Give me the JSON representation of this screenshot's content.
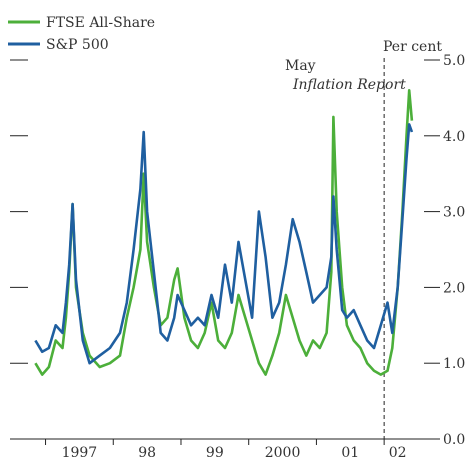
{
  "chart_data": {
    "type": "line",
    "title": "",
    "xlabel": "",
    "ylabel": "",
    "y_unit_label": "Per cent",
    "ylim": [
      0,
      5
    ],
    "yticks": [
      "0.0",
      "1.0",
      "2.0",
      "3.0",
      "4.0",
      "5.0"
    ],
    "xlim": [
      1996.8,
      2002.5
    ],
    "xtick_labels": [
      {
        "label": "1997",
        "x": 1997.5
      },
      {
        "label": "98",
        "x": 1998.5
      },
      {
        "label": "99",
        "x": 1999.5
      },
      {
        "label": "2000",
        "x": 2000.5
      },
      {
        "label": "01",
        "x": 2001.5
      },
      {
        "label": "02",
        "x": 2002.2
      }
    ],
    "year_boundaries": [
      1997,
      1998,
      1999,
      2000,
      2001,
      2002
    ],
    "legend_position": "top-left",
    "annotation": {
      "x": 2002.0,
      "line1": "May",
      "line2": "Inflation Report"
    },
    "series": [
      {
        "name": "FTSE All-Share",
        "color": "#4caf3a",
        "points": [
          [
            1996.85,
            1.0
          ],
          [
            1996.95,
            0.85
          ],
          [
            1997.05,
            0.95
          ],
          [
            1997.15,
            1.3
          ],
          [
            1997.25,
            1.2
          ],
          [
            1997.3,
            1.6
          ],
          [
            1997.35,
            2.2
          ],
          [
            1997.4,
            3.1
          ],
          [
            1997.45,
            2.0
          ],
          [
            1997.55,
            1.4
          ],
          [
            1997.65,
            1.1
          ],
          [
            1997.8,
            0.95
          ],
          [
            1997.95,
            1.0
          ],
          [
            1998.1,
            1.1
          ],
          [
            1998.2,
            1.6
          ],
          [
            1998.3,
            2.0
          ],
          [
            1998.4,
            2.5
          ],
          [
            1998.45,
            3.5
          ],
          [
            1998.5,
            2.6
          ],
          [
            1998.6,
            2.0
          ],
          [
            1998.7,
            1.5
          ],
          [
            1998.8,
            1.6
          ],
          [
            1998.9,
            2.1
          ],
          [
            1998.95,
            2.25
          ],
          [
            1999.05,
            1.6
          ],
          [
            1999.15,
            1.3
          ],
          [
            1999.25,
            1.2
          ],
          [
            1999.35,
            1.4
          ],
          [
            1999.45,
            1.8
          ],
          [
            1999.55,
            1.3
          ],
          [
            1999.65,
            1.2
          ],
          [
            1999.75,
            1.4
          ],
          [
            1999.85,
            1.9
          ],
          [
            1999.95,
            1.6
          ],
          [
            2000.05,
            1.3
          ],
          [
            2000.15,
            1.0
          ],
          [
            2000.25,
            0.85
          ],
          [
            2000.35,
            1.1
          ],
          [
            2000.45,
            1.4
          ],
          [
            2000.55,
            1.9
          ],
          [
            2000.65,
            1.6
          ],
          [
            2000.75,
            1.3
          ],
          [
            2000.85,
            1.1
          ],
          [
            2000.95,
            1.3
          ],
          [
            2001.05,
            1.2
          ],
          [
            2001.15,
            1.4
          ],
          [
            2001.22,
            2.2
          ],
          [
            2001.25,
            4.25
          ],
          [
            2001.3,
            3.0
          ],
          [
            2001.38,
            2.0
          ],
          [
            2001.45,
            1.5
          ],
          [
            2001.55,
            1.3
          ],
          [
            2001.65,
            1.2
          ],
          [
            2001.75,
            1.0
          ],
          [
            2001.85,
            0.9
          ],
          [
            2001.95,
            0.85
          ],
          [
            2002.05,
            0.9
          ],
          [
            2002.12,
            1.2
          ],
          [
            2002.2,
            2.0
          ],
          [
            2002.27,
            3.0
          ],
          [
            2002.33,
            4.0
          ],
          [
            2002.37,
            4.6
          ],
          [
            2002.41,
            4.2
          ]
        ]
      },
      {
        "name": "S&P 500",
        "color": "#1f5fa0",
        "points": [
          [
            1996.85,
            1.3
          ],
          [
            1996.95,
            1.15
          ],
          [
            1997.05,
            1.2
          ],
          [
            1997.15,
            1.5
          ],
          [
            1997.25,
            1.4
          ],
          [
            1997.3,
            1.8
          ],
          [
            1997.35,
            2.3
          ],
          [
            1997.4,
            3.1
          ],
          [
            1997.45,
            2.1
          ],
          [
            1997.55,
            1.3
          ],
          [
            1997.65,
            1.0
          ],
          [
            1997.8,
            1.1
          ],
          [
            1997.95,
            1.2
          ],
          [
            1998.1,
            1.4
          ],
          [
            1998.2,
            1.8
          ],
          [
            1998.3,
            2.5
          ],
          [
            1998.4,
            3.3
          ],
          [
            1998.45,
            4.05
          ],
          [
            1998.5,
            3.0
          ],
          [
            1998.6,
            2.2
          ],
          [
            1998.7,
            1.4
          ],
          [
            1998.8,
            1.3
          ],
          [
            1998.9,
            1.6
          ],
          [
            1998.95,
            1.9
          ],
          [
            1999.05,
            1.7
          ],
          [
            1999.15,
            1.5
          ],
          [
            1999.25,
            1.6
          ],
          [
            1999.35,
            1.5
          ],
          [
            1999.45,
            1.9
          ],
          [
            1999.55,
            1.6
          ],
          [
            1999.65,
            2.3
          ],
          [
            1999.75,
            1.8
          ],
          [
            1999.85,
            2.6
          ],
          [
            1999.95,
            2.1
          ],
          [
            2000.05,
            1.6
          ],
          [
            2000.15,
            3.0
          ],
          [
            2000.25,
            2.4
          ],
          [
            2000.35,
            1.6
          ],
          [
            2000.45,
            1.8
          ],
          [
            2000.55,
            2.3
          ],
          [
            2000.65,
            2.9
          ],
          [
            2000.75,
            2.6
          ],
          [
            2000.85,
            2.2
          ],
          [
            2000.95,
            1.8
          ],
          [
            2001.05,
            1.9
          ],
          [
            2001.15,
            2.0
          ],
          [
            2001.22,
            2.4
          ],
          [
            2001.25,
            3.2
          ],
          [
            2001.3,
            2.5
          ],
          [
            2001.38,
            1.7
          ],
          [
            2001.45,
            1.6
          ],
          [
            2001.55,
            1.7
          ],
          [
            2001.65,
            1.5
          ],
          [
            2001.75,
            1.3
          ],
          [
            2001.85,
            1.2
          ],
          [
            2001.95,
            1.5
          ],
          [
            2002.05,
            1.8
          ],
          [
            2002.12,
            1.4
          ],
          [
            2002.2,
            2.0
          ],
          [
            2002.27,
            2.9
          ],
          [
            2002.33,
            3.7
          ],
          [
            2002.37,
            4.15
          ],
          [
            2002.41,
            4.05
          ]
        ]
      }
    ]
  }
}
